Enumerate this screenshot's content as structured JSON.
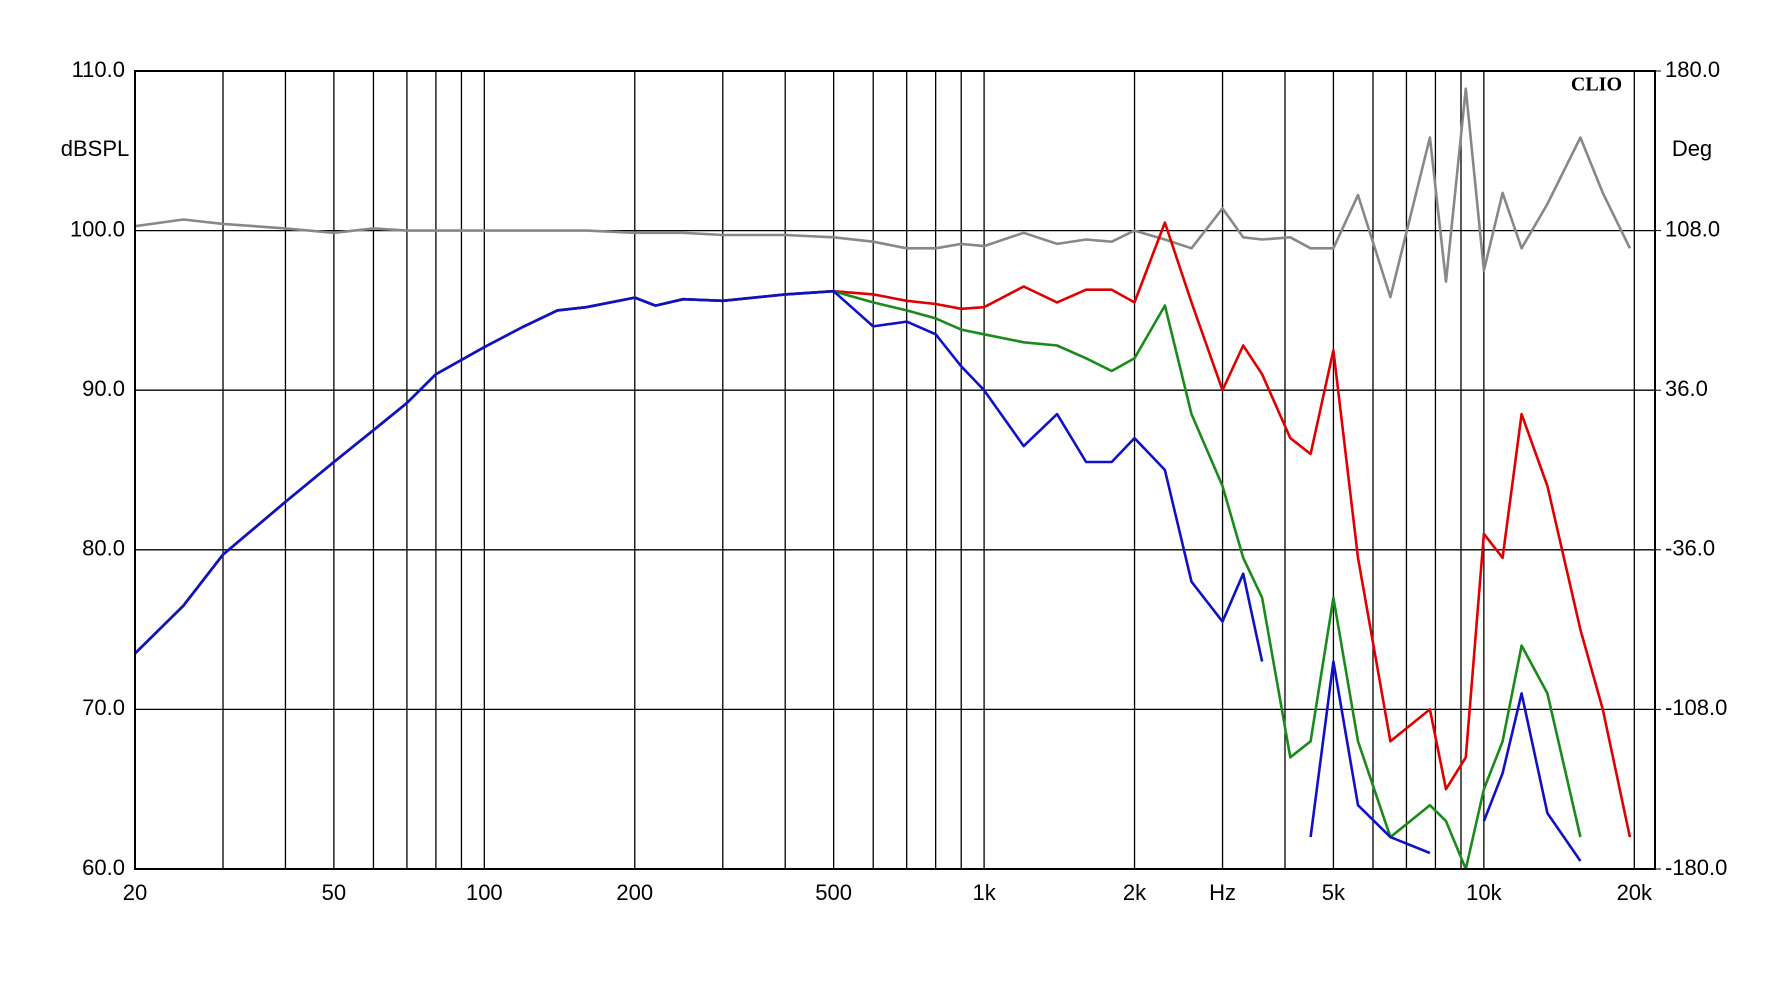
{
  "chart_data": {
    "type": "line",
    "title": "CLIO",
    "y_label": "dBSPL",
    "y2_label": "Deg",
    "log_x": true,
    "grid": true,
    "xlim": [
      20,
      22000
    ],
    "xticks": [
      20,
      50,
      100,
      200,
      500,
      {
        "value": 1000,
        "label": "1k"
      },
      {
        "value": 2000,
        "label": "2k"
      },
      {
        "value": 3000,
        "label": "Hz"
      },
      {
        "value": 5000,
        "label": "5k"
      },
      {
        "value": 10000,
        "label": "10k"
      },
      {
        "value": 20000,
        "label": "20k"
      }
    ],
    "xminor": [
      30,
      40,
      60,
      70,
      80,
      90,
      300,
      400,
      600,
      700,
      800,
      900,
      4000,
      6000,
      7000,
      8000,
      9000
    ],
    "ylim": [
      60,
      110
    ],
    "yticks": [
      {
        "value": 60,
        "label": "60.0"
      },
      {
        "value": 70,
        "label": "70.0"
      },
      {
        "value": 80,
        "label": "80.0"
      },
      {
        "value": 90,
        "label": "90.0"
      },
      {
        "value": 100,
        "label": "100.0"
      },
      {
        "value": 110,
        "label": "110.0"
      }
    ],
    "y2lim": [
      -180,
      180
    ],
    "y2ticks": [
      {
        "value": -180,
        "label": "-180.0"
      },
      {
        "value": -108,
        "label": "-108.0"
      },
      {
        "value": -36,
        "label": "-36.0"
      },
      {
        "value": 36,
        "label": "36.0"
      },
      {
        "value": 108,
        "label": "108.0"
      },
      {
        "value": 180,
        "label": "180.0"
      }
    ],
    "x": [
      20,
      25,
      30,
      40,
      50,
      60,
      70,
      80,
      100,
      120,
      140,
      160,
      200,
      220,
      250,
      300,
      400,
      500,
      600,
      700,
      800,
      900,
      1000,
      1200,
      1400,
      1600,
      1800,
      2000,
      2300,
      2600,
      3000,
      3300,
      3600,
      4100,
      4500,
      5000,
      5600,
      6500,
      7800,
      8400,
      9200,
      10000,
      10900,
      11900,
      13400,
      15600,
      17300,
      19600
    ],
    "series": [
      {
        "color": "#888888",
        "axis": "y2",
        "values": [
          110,
          113,
          111,
          109,
          107,
          109,
          108,
          108,
          108,
          108,
          108,
          108,
          107,
          107,
          107,
          106,
          106,
          105,
          103,
          100,
          100,
          102,
          101,
          107,
          102,
          104,
          103,
          108,
          104,
          100,
          118,
          105,
          104,
          105,
          100,
          100,
          124,
          78,
          150,
          85,
          172,
          90,
          125,
          100,
          120,
          150,
          125,
          100
        ]
      },
      {
        "color": "#e00000",
        "values": [
          73.5,
          76.5,
          79.7,
          83,
          85.5,
          87.5,
          89.2,
          91,
          92.7,
          94,
          95,
          95.2,
          95.8,
          95.3,
          95.7,
          95.6,
          96,
          96.2,
          96,
          95.6,
          95.4,
          95.1,
          95.2,
          96.5,
          95.5,
          96.3,
          96.3,
          95.5,
          100.5,
          95.5,
          90,
          92.8,
          91,
          87,
          86,
          92.5,
          79.5,
          68,
          70,
          65,
          67,
          81,
          79.5,
          88.5,
          84,
          75,
          70,
          62
        ]
      },
      {
        "color": "#1a8a1a",
        "values": [
          73.5,
          76.5,
          79.7,
          83,
          85.5,
          87.5,
          89.2,
          91,
          92.7,
          94,
          95,
          95.2,
          95.8,
          95.3,
          95.7,
          95.6,
          96,
          96.2,
          95.5,
          95,
          94.5,
          93.8,
          93.5,
          93,
          92.8,
          92,
          91.2,
          92,
          95.3,
          88.5,
          84,
          79.5,
          77,
          67,
          68,
          77,
          68,
          62,
          64,
          63,
          60,
          65,
          68,
          74,
          71,
          62,
          null,
          null
        ]
      },
      {
        "color": "#1010c8",
        "values": [
          73.5,
          76.5,
          79.7,
          83,
          85.5,
          87.5,
          89.2,
          91,
          92.7,
          94,
          95,
          95.2,
          95.8,
          95.3,
          95.7,
          95.6,
          96,
          96.2,
          94,
          94.3,
          93.5,
          91.5,
          90,
          86.5,
          88.5,
          85.5,
          85.5,
          87,
          85,
          78,
          75.5,
          78.5,
          73,
          null,
          62,
          73,
          64,
          62,
          61,
          null,
          null,
          63,
          66,
          71,
          63.5,
          60.5,
          null,
          null
        ]
      }
    ]
  }
}
